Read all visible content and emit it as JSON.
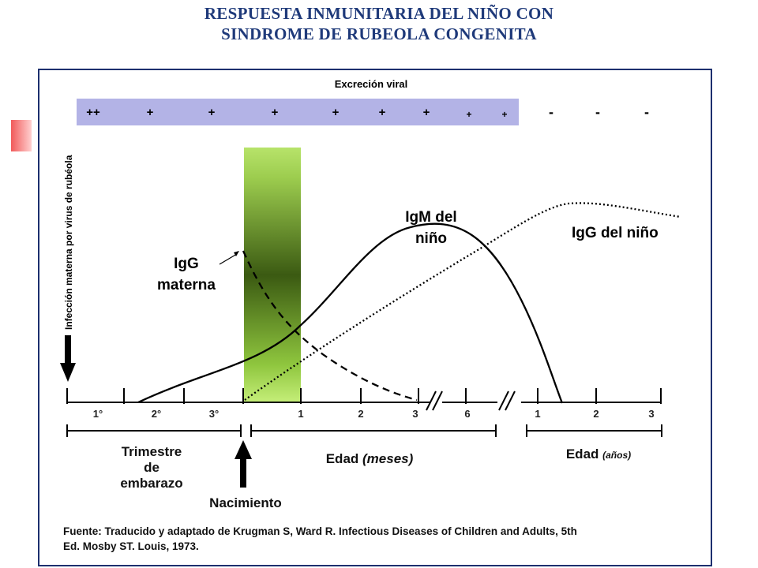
{
  "title": {
    "line1": "RESPUESTA INMUNITARIA DEL NIÑO CON",
    "line2": "SINDROME DE  RUBEOLA CONGENITA"
  },
  "excretion": {
    "label": "Excreción viral",
    "positive_marks": [
      "++",
      "+",
      "+",
      "+",
      "+",
      "+",
      "+",
      "+",
      "+"
    ],
    "negative_marks": [
      "-",
      "-",
      "-"
    ],
    "band_color": "#b3b3e6"
  },
  "vertical_label": "Infección materna por virus de rubéola",
  "curve_labels": {
    "igg_maternal": [
      "IgG",
      "materna"
    ],
    "igm_child": [
      "IgM del",
      "niño"
    ],
    "igg_child": "IgG del niño"
  },
  "axis": {
    "trimester_ticks": [
      "1°",
      "2°",
      "3°"
    ],
    "month_ticks": [
      "1",
      "2",
      "3",
      "6"
    ],
    "year_ticks": [
      "1",
      "2",
      "3"
    ]
  },
  "ranges": {
    "trimester": [
      "Trimestre",
      "de",
      "embarazo"
    ],
    "months": {
      "label": "Edad",
      "unit": "(meses)"
    },
    "years": {
      "label": "Edad",
      "unit": "(años)"
    }
  },
  "birth_label": "Nacimiento",
  "source": {
    "line1": "Fuente: Traducido y adaptado de Krugman S, Ward R. Infectious Diseases of Children and Adults, 5th",
    "line2": "Ed. Mosby ST. Louis, 1973."
  },
  "colors": {
    "frame": "#1d2f6e",
    "title": "#1f3a7a",
    "birth_bar_top": "#b7e36a",
    "birth_bar_mid": "#3b5a12"
  }
}
